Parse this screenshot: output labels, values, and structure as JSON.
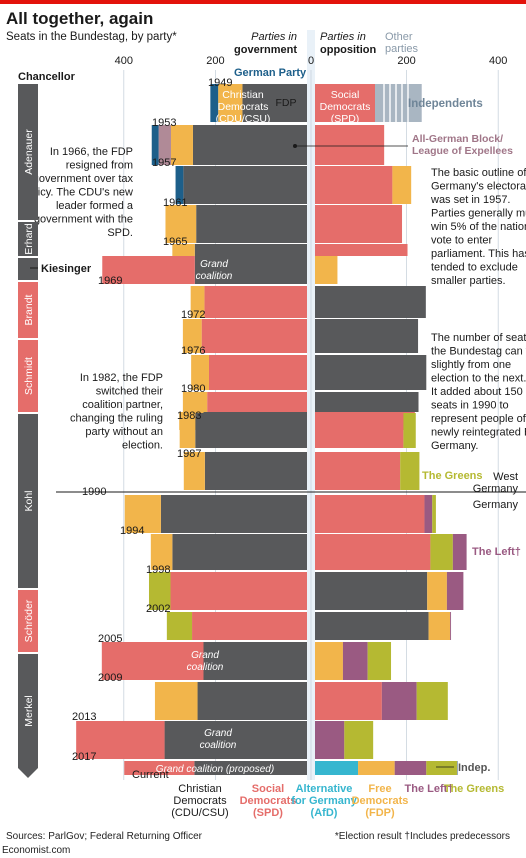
{
  "header": {
    "title": "All together, again",
    "subtitle": "Seats in the Bundestag, by party*"
  },
  "footer": {
    "sources": "Sources: ParlGov; Federal Returning Officer",
    "brand": "Economist.com",
    "note": "*Election result  †Includes predecessors"
  },
  "colors": {
    "cdu": "#58595b",
    "spd": "#e56d6a",
    "fdp": "#f2b54b",
    "greens": "#b5b932",
    "left": "#9a5a82",
    "afd": "#36b6cf",
    "german_party": "#1d5f8a",
    "bhe": "#b08a97",
    "other": "#a9b6c2",
    "independents": "#8ea2b4",
    "chancellor_dark": "#58595b",
    "chancellor_red": "#e56d6a"
  },
  "chart_data": {
    "type": "bar",
    "orientation": "horizontal-diverging",
    "left_header": "Parties in government",
    "right_header": "Parties in opposition",
    "axis_ticks": [
      400,
      200,
      0,
      200,
      400
    ],
    "chancellor_label": "Chancellor",
    "years": [
      "1949",
      "1953",
      "1957",
      "1961",
      "1965",
      "1969",
      "1972",
      "1976",
      "1980",
      "1983",
      "1987",
      "1990",
      "1994",
      "1998",
      "2002",
      "2005",
      "2009",
      "2013",
      "2017",
      "Current"
    ],
    "government": [
      {
        "year": "1949",
        "parts": [
          {
            "party": "CDU/CSU",
            "seats": 141
          },
          {
            "party": "FDP",
            "seats": 53
          },
          {
            "party": "DP",
            "seats": 17
          }
        ]
      },
      {
        "year": "1953",
        "parts": [
          {
            "party": "CDU/CSU",
            "seats": 249
          },
          {
            "party": "FDP",
            "seats": 48
          },
          {
            "party": "BHE",
            "seats": 27
          },
          {
            "party": "DP",
            "seats": 15
          }
        ]
      },
      {
        "year": "1957",
        "parts": [
          {
            "party": "CDU/CSU",
            "seats": 270
          },
          {
            "party": "DP",
            "seats": 17
          }
        ]
      },
      {
        "year": "1961",
        "parts": [
          {
            "party": "CDU/CSU",
            "seats": 242
          },
          {
            "party": "FDP",
            "seats": 67
          }
        ]
      },
      {
        "year": "1965",
        "parts": [
          {
            "party": "CDU/CSU",
            "seats": 245
          },
          {
            "party": "FDP",
            "seats": 49
          }
        ]
      },
      {
        "year": "1966",
        "parts": [
          {
            "party": "CDU/CSU",
            "seats": 245
          },
          {
            "party": "SPD",
            "seats": 202
          }
        ]
      },
      {
        "year": "1969",
        "parts": [
          {
            "party": "SPD",
            "seats": 224
          },
          {
            "party": "FDP",
            "seats": 30
          }
        ]
      },
      {
        "year": "1972",
        "parts": [
          {
            "party": "SPD",
            "seats": 230
          },
          {
            "party": "FDP",
            "seats": 41
          }
        ]
      },
      {
        "year": "1976",
        "parts": [
          {
            "party": "SPD",
            "seats": 214
          },
          {
            "party": "FDP",
            "seats": 39
          }
        ]
      },
      {
        "year": "1980",
        "parts": [
          {
            "party": "SPD",
            "seats": 218
          },
          {
            "party": "FDP",
            "seats": 53
          }
        ]
      },
      {
        "year": "1982",
        "parts": [
          {
            "party": "CDU/CSU",
            "seats": 226
          },
          {
            "party": "FDP",
            "seats": 53
          }
        ]
      },
      {
        "year": "1983",
        "parts": [
          {
            "party": "CDU/CSU",
            "seats": 244
          },
          {
            "party": "FDP",
            "seats": 34
          }
        ]
      },
      {
        "year": "1987",
        "parts": [
          {
            "party": "CDU/CSU",
            "seats": 223
          },
          {
            "party": "FDP",
            "seats": 46
          }
        ]
      },
      {
        "year": "1990",
        "parts": [
          {
            "party": "CDU/CSU",
            "seats": 319
          },
          {
            "party": "FDP",
            "seats": 79
          }
        ]
      },
      {
        "year": "1994",
        "parts": [
          {
            "party": "CDU/CSU",
            "seats": 294
          },
          {
            "party": "FDP",
            "seats": 47
          }
        ]
      },
      {
        "year": "1998",
        "parts": [
          {
            "party": "SPD",
            "seats": 298
          },
          {
            "party": "Greens",
            "seats": 47
          }
        ]
      },
      {
        "year": "2002",
        "parts": [
          {
            "party": "SPD",
            "seats": 251
          },
          {
            "party": "Greens",
            "seats": 55
          }
        ]
      },
      {
        "year": "2005",
        "parts": [
          {
            "party": "CDU/CSU",
            "seats": 226
          },
          {
            "party": "SPD",
            "seats": 222
          }
        ]
      },
      {
        "year": "2009",
        "parts": [
          {
            "party": "CDU/CSU",
            "seats": 239
          },
          {
            "party": "FDP",
            "seats": 93
          }
        ]
      },
      {
        "year": "2013",
        "parts": [
          {
            "party": "CDU/CSU",
            "seats": 311
          },
          {
            "party": "SPD",
            "seats": 193
          }
        ]
      },
      {
        "year": "Current",
        "parts": [
          {
            "party": "CDU/CSU",
            "seats": 246
          },
          {
            "party": "SPD",
            "seats": 153
          }
        ]
      }
    ],
    "opposition": [
      {
        "year": "1949",
        "parts": [
          {
            "party": "SPD",
            "seats": 131
          },
          {
            "party": "Other",
            "seats": 102
          }
        ]
      },
      {
        "year": "1953",
        "parts": [
          {
            "party": "SPD",
            "seats": 151
          }
        ]
      },
      {
        "year": "1957",
        "parts": [
          {
            "party": "SPD",
            "seats": 169
          },
          {
            "party": "FDP",
            "seats": 41
          }
        ]
      },
      {
        "year": "1961",
        "parts": [
          {
            "party": "SPD",
            "seats": 190
          }
        ]
      },
      {
        "year": "1965",
        "parts": [
          {
            "party": "SPD",
            "seats": 202
          }
        ]
      },
      {
        "year": "1966",
        "parts": [
          {
            "party": "FDP",
            "seats": 49
          }
        ]
      },
      {
        "year": "1969",
        "parts": [
          {
            "party": "CDU/CSU",
            "seats": 242
          }
        ]
      },
      {
        "year": "1972",
        "parts": [
          {
            "party": "CDU/CSU",
            "seats": 225
          }
        ]
      },
      {
        "year": "1976",
        "parts": [
          {
            "party": "CDU/CSU",
            "seats": 243
          }
        ]
      },
      {
        "year": "1980",
        "parts": [
          {
            "party": "CDU/CSU",
            "seats": 226
          }
        ]
      },
      {
        "year": "1982",
        "parts": [
          {
            "party": "SPD",
            "seats": 218
          }
        ]
      },
      {
        "year": "1983",
        "parts": [
          {
            "party": "SPD",
            "seats": 193
          },
          {
            "party": "Greens",
            "seats": 27
          }
        ]
      },
      {
        "year": "1987",
        "parts": [
          {
            "party": "SPD",
            "seats": 186
          },
          {
            "party": "Greens",
            "seats": 42
          }
        ]
      },
      {
        "year": "1990",
        "parts": [
          {
            "party": "SPD",
            "seats": 239
          },
          {
            "party": "Left",
            "seats": 17
          },
          {
            "party": "Greens",
            "seats": 8
          }
        ]
      },
      {
        "year": "1994",
        "parts": [
          {
            "party": "SPD",
            "seats": 252
          },
          {
            "party": "Greens",
            "seats": 49
          },
          {
            "party": "Left",
            "seats": 30
          }
        ]
      },
      {
        "year": "1998",
        "parts": [
          {
            "party": "CDU/CSU",
            "seats": 245
          },
          {
            "party": "FDP",
            "seats": 43
          },
          {
            "party": "Left",
            "seats": 36
          }
        ]
      },
      {
        "year": "2002",
        "parts": [
          {
            "party": "CDU/CSU",
            "seats": 248
          },
          {
            "party": "FDP",
            "seats": 47
          },
          {
            "party": "Left",
            "seats": 2
          }
        ]
      },
      {
        "year": "2005",
        "parts": [
          {
            "party": "FDP",
            "seats": 61
          },
          {
            "party": "Left",
            "seats": 54
          },
          {
            "party": "Greens",
            "seats": 51
          }
        ]
      },
      {
        "year": "2009",
        "parts": [
          {
            "party": "SPD",
            "seats": 146
          },
          {
            "party": "Left",
            "seats": 76
          },
          {
            "party": "Greens",
            "seats": 68
          }
        ]
      },
      {
        "year": "2013",
        "parts": [
          {
            "party": "Left",
            "seats": 64
          },
          {
            "party": "Greens",
            "seats": 63
          }
        ]
      },
      {
        "year": "Current",
        "parts": [
          {
            "party": "AfD",
            "seats": 94
          },
          {
            "party": "FDP",
            "seats": 80
          },
          {
            "party": "Left",
            "seats": 69
          },
          {
            "party": "Greens",
            "seats": 67
          },
          {
            "party": "Indep",
            "seats": 2
          }
        ]
      }
    ],
    "chancellors": [
      {
        "name": "Adenauer",
        "from": "1949",
        "to": "1965",
        "color": "dark"
      },
      {
        "name": "Erhard",
        "from": "1965",
        "to": "1966",
        "color": "dark"
      },
      {
        "name": "Kiesinger",
        "from": "1966",
        "to": "1969",
        "color": "dark"
      },
      {
        "name": "Brandt",
        "from": "1969",
        "to": "1974",
        "color": "red"
      },
      {
        "name": "Schmidt",
        "from": "1974",
        "to": "1982",
        "color": "red"
      },
      {
        "name": "Kohl",
        "from": "1982",
        "to": "1998",
        "color": "dark"
      },
      {
        "name": "Schröder",
        "from": "1998",
        "to": "2005",
        "color": "red"
      },
      {
        "name": "Merkel",
        "from": "2005",
        "to": "2018",
        "color": "dark"
      }
    ],
    "bar_labels": [
      {
        "text": "Christian Democrats (CDU/CSU)",
        "row": "1949",
        "side": "government"
      },
      {
        "text": "FDP",
        "row": "1949",
        "side": "government"
      },
      {
        "text": "Social Democrats (SPD)",
        "row": "1949",
        "side": "opposition"
      },
      {
        "text": "Grand coalition",
        "row": "1966",
        "side": "government"
      },
      {
        "text": "Grand coalition",
        "row": "2005",
        "side": "government"
      },
      {
        "text": "Grand coalition",
        "row": "2013",
        "side": "government"
      },
      {
        "text": "Grand coalition (proposed)",
        "row": "Current",
        "side": "government"
      }
    ],
    "callouts": {
      "german_party": "German Party",
      "other_parties": "Other parties",
      "independents": "Independents",
      "bhe": "All-German Block/ League of Expellees",
      "greens": "The Greens",
      "left": "The Left†",
      "indep": "Indep."
    },
    "annotations": {
      "fdp_1966": "In 1966, the FDP resigned from government over tax policy. The CDU's new leader formed a government with the SPD.",
      "threshold": "The basic outline of Germany's electoral law was set in 1957. Parties generally must win 5% of the national vote to enter parliament. This has tended to exclude smaller parties.",
      "seats": "The number of seats in the Bundestag can vary slightly from one election to the next. It added about 150 seats in 1990 to represent people of the newly reintegrated East Germany.",
      "fdp_1982": "In 1982, the FDP switched their coalition partner, changing the ruling party without an election."
    },
    "divider_labels": {
      "above": "West Germany",
      "below": "Germany"
    },
    "bottom_legend": [
      {
        "label": "Christian Democrats (CDU/CSU)",
        "party": "CDU/CSU"
      },
      {
        "label": "Social Democrats (SPD)",
        "party": "SPD"
      },
      {
        "label": "Alternative for Germany (AfD)",
        "party": "AfD"
      },
      {
        "label": "Free Democrats (FDP)",
        "party": "FDP"
      },
      {
        "label": "The Left†",
        "party": "Left"
      },
      {
        "label": "The Greens",
        "party": "Greens"
      }
    ]
  }
}
